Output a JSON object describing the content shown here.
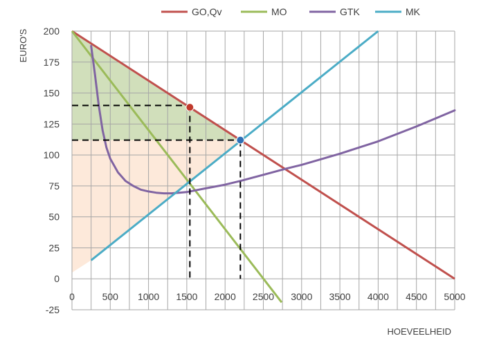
{
  "chart_data": {
    "type": "line",
    "x_axis": {
      "label": "HOEVEELHEID",
      "min": 0,
      "max": 5000,
      "step": 250,
      "ticks": [
        0,
        500,
        1000,
        1500,
        2000,
        2500,
        3000,
        3500,
        4000,
        4500,
        5000
      ]
    },
    "y_axis": {
      "label": "EURO'S",
      "min": -25,
      "max": 200,
      "ticks": [
        -25,
        0,
        25,
        50,
        75,
        100,
        125,
        150,
        175,
        200
      ]
    },
    "grid": true,
    "legend_position": "top",
    "series": [
      {
        "name": "GO,Qv",
        "color": "#C0504D",
        "x": [
          0,
          5000
        ],
        "y": [
          200,
          0
        ]
      },
      {
        "name": "MO",
        "color": "#9BBB59",
        "x": [
          0,
          2740
        ],
        "y": [
          200,
          -19
        ]
      },
      {
        "name": "GTK",
        "color": "#8064A2",
        "x": [
          250,
          300,
          350,
          400,
          450,
          500,
          600,
          700,
          800,
          900,
          1000,
          1100,
          1200,
          1300,
          1400,
          1500,
          1700,
          2000,
          2200,
          2500,
          2800,
          3000,
          3500,
          4000,
          4500,
          5000
        ],
        "y": [
          188,
          165,
          140,
          120,
          106,
          97,
          86,
          79,
          75,
          72,
          70.5,
          69.5,
          69,
          69,
          69.5,
          70,
          72.5,
          76,
          79,
          84,
          89,
          92,
          101,
          111,
          123,
          136
        ]
      },
      {
        "name": "MK",
        "color": "#4BACC6",
        "x": [
          250,
          4000
        ],
        "y": [
          15,
          200
        ]
      }
    ],
    "areas": [
      {
        "name": "consumentensurplus",
        "color": "#C9D9AF",
        "x": [
          0,
          1540,
          2200,
          2200,
          0
        ],
        "y": [
          200,
          138.5,
          112,
          112,
          112
        ]
      },
      {
        "name": "producentensurplus",
        "color": "#FDE5D3",
        "x": [
          0,
          2200,
          250,
          0
        ],
        "y": [
          112,
          112,
          15,
          5
        ]
      }
    ],
    "points": [
      {
        "x": 1540,
        "y": 138.5,
        "color": "#C0392B"
      },
      {
        "x": 2200,
        "y": 112,
        "color": "#2E6FB5"
      }
    ],
    "dashed_guides": [
      {
        "x": [
          0,
          1540
        ],
        "y": [
          140,
          140
        ]
      },
      {
        "x": [
          1540,
          1540
        ],
        "y": [
          140,
          0
        ]
      },
      {
        "x": [
          0,
          2200
        ],
        "y": [
          112,
          112
        ]
      },
      {
        "x": [
          2200,
          2200
        ],
        "y": [
          112,
          0
        ]
      }
    ]
  }
}
